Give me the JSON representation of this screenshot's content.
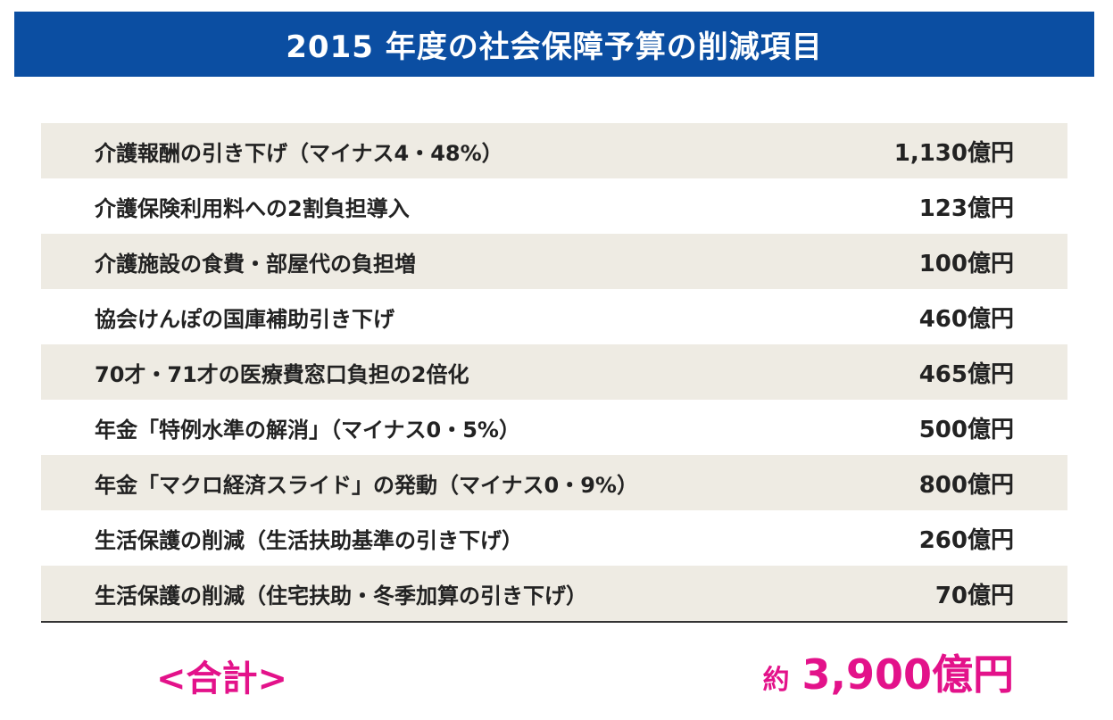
{
  "colors": {
    "title_bg": "#0b4ea2",
    "title_text": "#ffffff",
    "row_band": "#eeebe3",
    "row_plain": "#ffffff",
    "text": "#222222",
    "accent": "#e3128a"
  },
  "chart_data": {
    "type": "table",
    "title": "2015 年度の社会保障予算の削減項目",
    "columns": [],
    "rows": [
      {
        "label": "介護報酬の引き下げ（マイナス4・48%）",
        "value": "1,130億円"
      },
      {
        "label": "介護保険利用料への2割負担導入",
        "value": "123億円"
      },
      {
        "label": "介護施設の食費・部屋代の負担増",
        "value": "100億円"
      },
      {
        "label": "協会けんぽの国庫補助引き下げ",
        "value": "460億円"
      },
      {
        "label": "70才・71才の医療費窓口負担の2倍化",
        "value": "465億円"
      },
      {
        "label": "年金「特例水準の解消」（マイナス0・5%）",
        "value": "500億円"
      },
      {
        "label": "年金「マクロ経済スライド」の発動（マイナス0・9%）",
        "value": "800億円"
      },
      {
        "label": "生活保護の削減（生活扶助基準の引き下げ）",
        "value": "260億円"
      },
      {
        "label": "生活保護の削減（住宅扶助・冬季加算の引き下げ）",
        "value": "70億円"
      }
    ],
    "total": {
      "label": "<合計>",
      "prefix": "約",
      "value": "3,900億円"
    }
  }
}
